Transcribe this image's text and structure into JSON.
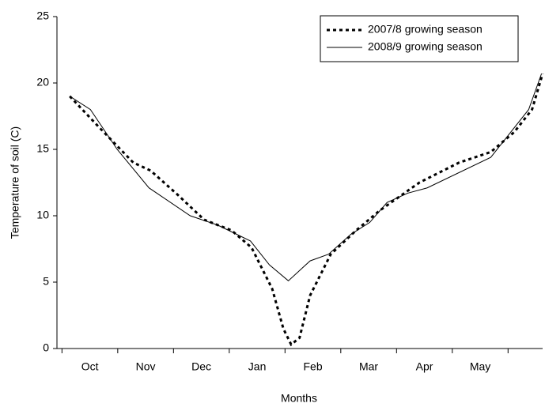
{
  "chart_data": {
    "type": "line",
    "x_label": "Months",
    "y_label": "Temperature of soil (C)",
    "categories": [
      "Oct",
      "Nov",
      "Dec",
      "Jan",
      "Feb",
      "Mar",
      "Apr",
      "May"
    ],
    "xlim": [
      -0.09,
      8.62
    ],
    "xticks": [
      0,
      1,
      2,
      3,
      4,
      5,
      6,
      7,
      8
    ],
    "ylim": [
      0,
      25
    ],
    "yticks": [
      0,
      5,
      10,
      15,
      20,
      25
    ],
    "legend": "upper right",
    "series": [
      {
        "name": "2007/8 growing season",
        "color": "#000000",
        "style": "dotted",
        "x": [
          0.14,
          0.68,
          1.28,
          1.59,
          2.07,
          2.55,
          3.04,
          3.4,
          3.77,
          3.97,
          4.11,
          4.26,
          4.45,
          4.82,
          5.25,
          5.7,
          6.41,
          7.12,
          7.69,
          8.11,
          8.43,
          8.62
        ],
        "values": [
          19,
          16.6,
          14,
          13.4,
          11.6,
          9.7,
          8.9,
          7.6,
          4.5,
          1.5,
          0.3,
          0.8,
          4,
          7.1,
          8.8,
          10.4,
          12.5,
          14,
          14.8,
          16.3,
          18,
          20.7
        ]
      },
      {
        "name": "2008/9 growing season",
        "color": "#000000",
        "style": "solid",
        "x": [
          0.14,
          0.51,
          0.99,
          1.56,
          2.3,
          2.79,
          3.38,
          3.72,
          4.06,
          4.45,
          4.78,
          5.18,
          5.52,
          5.83,
          6.2,
          6.55,
          7.69,
          8.37,
          8.6
        ],
        "values": [
          19,
          18,
          15,
          12.1,
          10,
          9.3,
          8.1,
          6.3,
          5.1,
          6.6,
          7.1,
          8.6,
          9.5,
          11,
          11.7,
          12.1,
          14.4,
          18,
          20.7
        ]
      }
    ]
  }
}
